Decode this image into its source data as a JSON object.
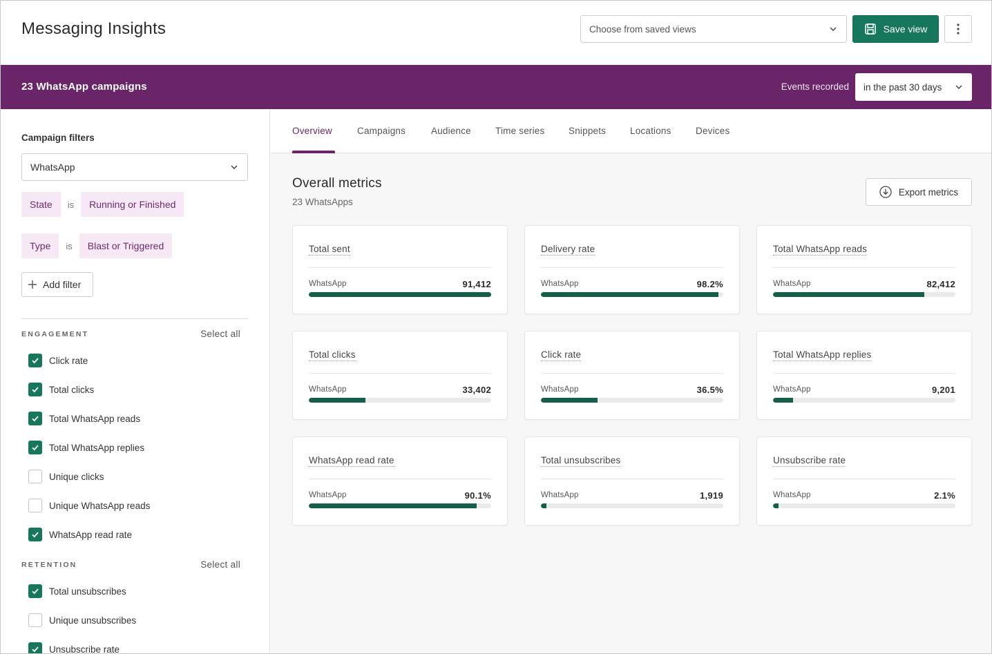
{
  "header": {
    "title": "Messaging Insights",
    "saved_views_placeholder": "Choose from saved views",
    "save_view_label": "Save view"
  },
  "banner": {
    "title": "23 WhatsApp campaigns",
    "events_label": "Events recorded",
    "range_value": "in the past 30 days"
  },
  "sidebar": {
    "heading": "Campaign filters",
    "channel_value": "WhatsApp",
    "filters": [
      {
        "field": "State",
        "op": "is",
        "value": "Running or Finished"
      },
      {
        "field": "Type",
        "op": "is",
        "value": "Blast or Triggered"
      }
    ],
    "add_filter_label": "Add filter",
    "engagement": {
      "label": "ENGAGEMENT",
      "select_all": "Select all",
      "items": [
        {
          "label": "Click rate",
          "checked": true
        },
        {
          "label": "Total clicks",
          "checked": true
        },
        {
          "label": "Total WhatsApp reads",
          "checked": true
        },
        {
          "label": "Total WhatsApp replies",
          "checked": true
        },
        {
          "label": "Unique clicks",
          "checked": false
        },
        {
          "label": "Unique WhatsApp reads",
          "checked": false
        },
        {
          "label": "WhatsApp read rate",
          "checked": true
        }
      ]
    },
    "retention": {
      "label": "RETENTION",
      "select_all": "Select all",
      "items": [
        {
          "label": "Total unsubscribes",
          "checked": true
        },
        {
          "label": "Unique unsubscribes",
          "checked": false
        },
        {
          "label": "Unsubscribe rate",
          "checked": true
        }
      ]
    }
  },
  "tabs": [
    "Overview",
    "Campaigns",
    "Audience",
    "Time series",
    "Snippets",
    "Locations",
    "Devices"
  ],
  "metrics": {
    "title": "Overall metrics",
    "subtitle": "23 WhatsApps",
    "export_label": "Export metrics",
    "cards": [
      {
        "title": "Total sent",
        "channel": "WhatsApp",
        "value": "91,412",
        "fill": 1.0
      },
      {
        "title": "Delivery rate",
        "channel": "WhatsApp",
        "value": "98.2%",
        "fill": 0.975
      },
      {
        "title": "Total WhatsApp reads",
        "channel": "WhatsApp",
        "value": "82,412",
        "fill": 0.83
      },
      {
        "title": "Total clicks",
        "channel": "WhatsApp",
        "value": "33,402",
        "fill": 0.31
      },
      {
        "title": "Click rate",
        "channel": "WhatsApp",
        "value": "36.5%",
        "fill": 0.31
      },
      {
        "title": "Total WhatsApp replies",
        "channel": "WhatsApp",
        "value": "9,201",
        "fill": 0.11
      },
      {
        "title": "WhatsApp read rate",
        "channel": "WhatsApp",
        "value": "90.1%",
        "fill": 0.92
      },
      {
        "title": "Total unsubscribes",
        "channel": "WhatsApp",
        "value": "1,919",
        "fill": 0.03
      },
      {
        "title": "Unsubscribe rate",
        "channel": "WhatsApp",
        "value": "2.1%",
        "fill": 0.03
      }
    ]
  },
  "colors": {
    "brand_purple": "#6a2569",
    "accent_green": "#16775d",
    "bar_green": "#145e4a",
    "chip_bg": "#f6e9f5"
  }
}
